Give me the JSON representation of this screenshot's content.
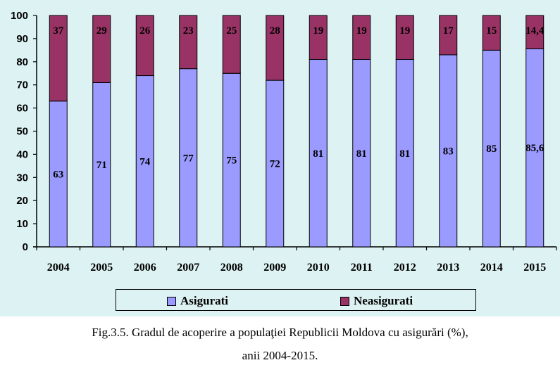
{
  "chart_data": {
    "type": "bar",
    "stacked": true,
    "categories": [
      "2004",
      "2005",
      "2006",
      "2007",
      "2008",
      "2009",
      "2010",
      "2011",
      "2012",
      "2013",
      "2014",
      "2015"
    ],
    "series": [
      {
        "name": "Asigurati",
        "color": "#9a9aff",
        "values": [
          63,
          71,
          74,
          77,
          75,
          72,
          81,
          81,
          81,
          83,
          85,
          85.6
        ],
        "labels": [
          "63",
          "71",
          "74",
          "77",
          "75",
          "72",
          "81",
          "81",
          "81",
          "83",
          "85",
          "85,6"
        ]
      },
      {
        "name": "Neasigurati",
        "color": "#993366",
        "values": [
          37,
          29,
          26,
          23,
          25,
          28,
          19,
          19,
          19,
          17,
          15,
          14.4
        ],
        "labels": [
          "37",
          "29",
          "26",
          "23",
          "25",
          "28",
          "19",
          "19",
          "19",
          "17",
          "15",
          "14,4"
        ]
      }
    ],
    "ylim": [
      0,
      100
    ],
    "yticks": [
      "0",
      "10",
      "20",
      "30",
      "40",
      "50",
      "60",
      "70",
      "80",
      "90",
      "100"
    ],
    "legend_position": "bottom",
    "xlabel": "",
    "ylabel": ""
  },
  "legend": {
    "asigurati": "Asigurati",
    "neasigurati": "Neasigurati"
  },
  "caption": {
    "line1": "Fig.3.5. Gradul de acoperire a populaţiei Republicii Moldova cu asigurări (%),",
    "line2": "anii 2004-2015."
  }
}
